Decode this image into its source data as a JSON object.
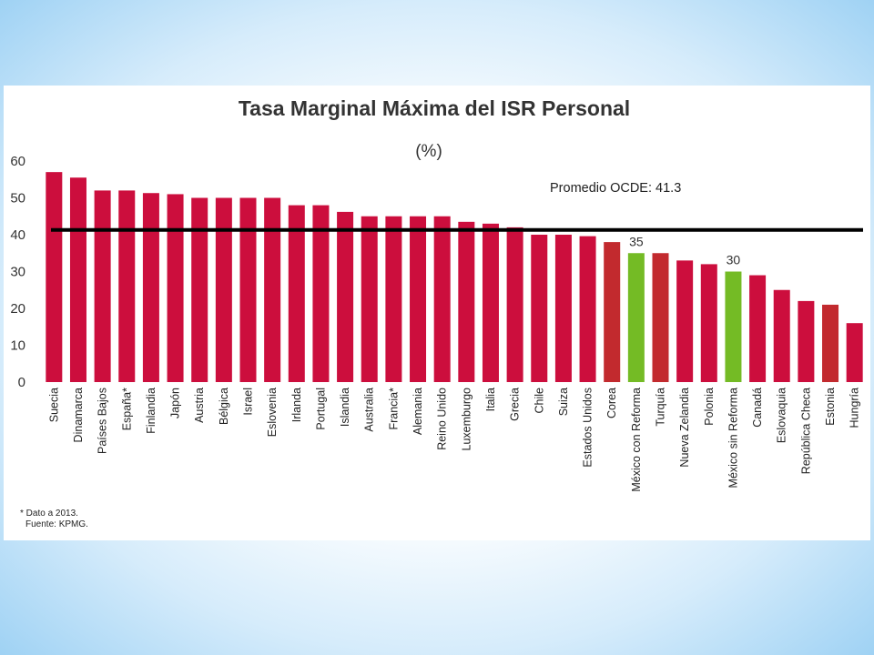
{
  "chart_data": {
    "type": "bar",
    "title": "Tasa Marginal Máxima del ISR Personal",
    "subtitle": "(%)",
    "ylim": [
      0,
      60
    ],
    "yticks": [
      0,
      10,
      20,
      30,
      40,
      50,
      60
    ],
    "grid": false,
    "categories": [
      "Suecia",
      "Dinamarca",
      "Países Bajos",
      "España*",
      "Finlandia",
      "Japón",
      "Austria",
      "Bélgica",
      "Israel",
      "Eslovenia",
      "Irlanda",
      "Portugal",
      "Islandia",
      "Australia",
      "Francia*",
      "Alemania",
      "Reino Unido",
      "Luxemburgo",
      "Italia",
      "Grecia",
      "Chile",
      "Suiza",
      "Estados Unidos",
      "Corea",
      "México con Reforma",
      "Turquía",
      "Nueva Zelandia",
      "Polonia",
      "México sin Reforma",
      "Canadá",
      "Eslovaquia",
      "República Checa",
      "Estonia",
      "Hungría"
    ],
    "values": [
      57,
      55.5,
      52,
      52,
      51.3,
      51,
      50,
      50,
      50,
      50,
      48,
      48,
      46.2,
      45,
      45,
      45,
      45,
      43.5,
      43,
      42,
      40,
      40,
      39.6,
      38,
      35,
      35,
      33,
      32,
      30,
      29,
      25,
      22,
      21,
      16
    ],
    "bar_colors": [
      "#cc0e3d",
      "#cc0e3d",
      "#cc0e3d",
      "#cc0e3d",
      "#cc0e3d",
      "#cc0e3d",
      "#cc0e3d",
      "#cc0e3d",
      "#cc0e3d",
      "#cc0e3d",
      "#cc0e3d",
      "#cc0e3d",
      "#cc0e3d",
      "#cc0e3d",
      "#cc0e3d",
      "#cc0e3d",
      "#cc0e3d",
      "#cc0e3d",
      "#cc0e3d",
      "#cc0e3d",
      "#cc0e3d",
      "#cc0e3d",
      "#cc0e3d",
      "#c22a2e",
      "#74bb25",
      "#c22a2e",
      "#cc0e3d",
      "#cc0e3d",
      "#74bb25",
      "#cc0e3d",
      "#cc0e3d",
      "#cc0e3d",
      "#c22a2e",
      "#cc0e3d"
    ],
    "reference_line": {
      "value": 41.3,
      "label": "Promedio OCDE: 41.3",
      "color": "#000000"
    },
    "data_labels": [
      {
        "category": "México con Reforma",
        "text": "35"
      },
      {
        "category": "México sin Reforma",
        "text": "30"
      }
    ],
    "footnotes": [
      "* Dato a 2013.",
      "Fuente: KPMG."
    ]
  }
}
